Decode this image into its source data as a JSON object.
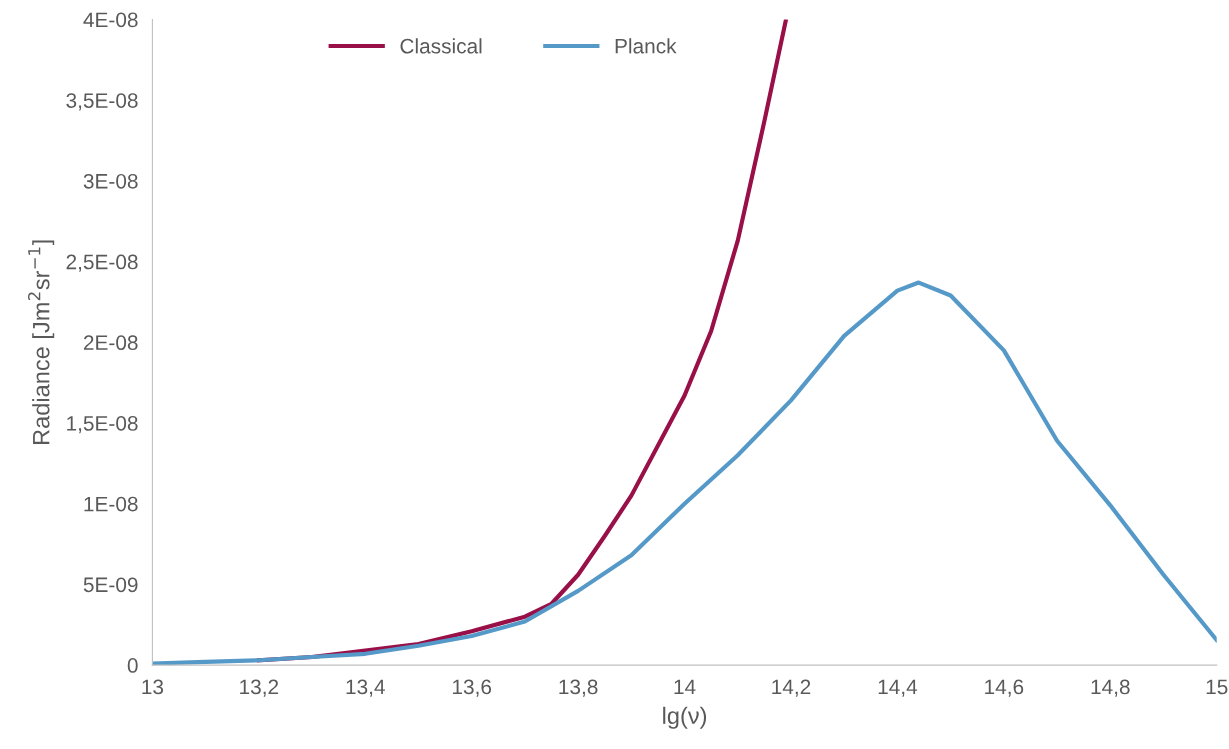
{
  "chart_data": {
    "type": "line",
    "xlabel": "lg(ν)",
    "ylabel": "Radiance [Jm$^{2}$sr$^{−1}$]",
    "xlim": [
      13,
      15
    ],
    "ylim": [
      0,
      4e-08
    ],
    "xticks": [
      13,
      {
        "value": 13.2,
        "label": "13,2"
      },
      {
        "value": 13.4,
        "label": "13,4"
      },
      {
        "value": 13.6,
        "label": "13,6"
      },
      {
        "value": 13.8,
        "label": "13,8"
      },
      14,
      {
        "value": 14.2,
        "label": "14,2"
      },
      {
        "value": 14.4,
        "label": "14,4"
      },
      {
        "value": 14.6,
        "label": "14,6"
      },
      {
        "value": 14.8,
        "label": "14,8"
      },
      15
    ],
    "yticks": [
      0,
      {
        "value": 5e-09,
        "label": "5E-09"
      },
      {
        "value": 1e-08,
        "label": "1E-08"
      },
      {
        "value": 1.5e-08,
        "label": "1,5E-08"
      },
      {
        "value": 2e-08,
        "label": "2E-08"
      },
      {
        "value": 2.5e-08,
        "label": "2,5E-08"
      },
      {
        "value": 3e-08,
        "label": "3E-08"
      },
      {
        "value": 3.5e-08,
        "label": "3,5E-08"
      },
      {
        "value": 4e-08,
        "label": "4E-08"
      }
    ],
    "grid": false,
    "legend": "top",
    "marker": "none",
    "line_style": "solid",
    "series": [
      {
        "name": "Classical",
        "color": "#990f47",
        "x": [
          13.2,
          13.3,
          13.4,
          13.5,
          13.6,
          13.7,
          13.75,
          13.8,
          13.85,
          13.9,
          14.0,
          14.05,
          14.1,
          14.15,
          14.19
        ],
        "values": [
          3e-10,
          5e-10,
          9e-10,
          1.3e-09,
          2.1e-09,
          3e-09,
          3.8e-09,
          5.6e-09,
          8e-09,
          1.05e-08,
          1.67e-08,
          2.07e-08,
          2.63e-08,
          3.37e-08,
          3.99e-08
        ]
      },
      {
        "name": "Planck",
        "color": "#5599c8",
        "x": [
          13,
          13.1,
          13.2,
          13.3,
          13.4,
          13.5,
          13.6,
          13.7,
          13.8,
          13.9,
          14.0,
          14.1,
          14.2,
          14.3,
          14.4,
          14.44,
          14.5,
          14.6,
          14.7,
          14.8,
          14.9,
          15.0
        ],
        "values": [
          1e-10,
          2e-10,
          3e-10,
          5e-10,
          7e-10,
          1.2e-09,
          1.8e-09,
          2.7e-09,
          4.6e-09,
          6.8e-09,
          1e-08,
          1.3e-08,
          1.64e-08,
          2.04e-08,
          2.32e-08,
          2.37e-08,
          2.29e-08,
          1.95e-08,
          1.39e-08,
          9.9e-09,
          5.6e-09,
          1.55e-09
        ]
      }
    ]
  }
}
